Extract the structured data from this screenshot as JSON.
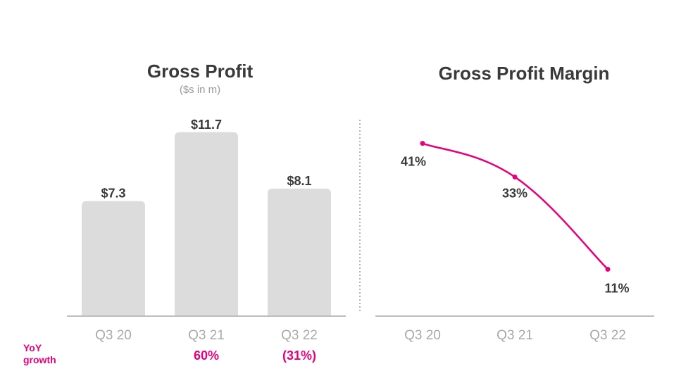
{
  "chart_data": [
    {
      "type": "bar",
      "title": "Gross Profit",
      "subtitle": "($s in m)",
      "categories": [
        "Q3 20",
        "Q3 21",
        "Q3 22"
      ],
      "values": [
        7.3,
        11.7,
        8.1
      ],
      "data_labels": [
        "$7.3",
        "$11.7",
        "$8.1"
      ],
      "growth_labels": [
        "",
        "60%",
        "(31%)"
      ],
      "ylim": [
        0,
        12.5
      ],
      "bar_color": "#dcdcdc",
      "growth_color": "#e6007e"
    },
    {
      "type": "line",
      "title": "Gross Profit Margin",
      "categories": [
        "Q3 20",
        "Q3 21",
        "Q3 22"
      ],
      "values": [
        41,
        33,
        11
      ],
      "data_labels": [
        "41%",
        "33%",
        "11%"
      ],
      "ylim": [
        0,
        50
      ],
      "line_color": "#e6007e"
    }
  ],
  "footnote": {
    "yoy_label": "YoY growth"
  }
}
